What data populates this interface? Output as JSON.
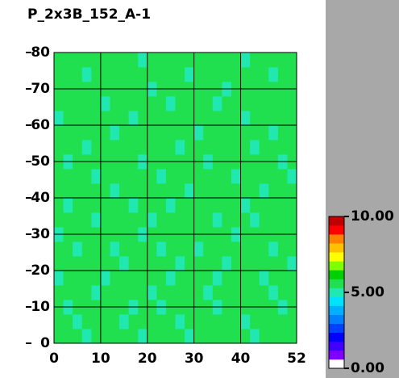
{
  "chart_data": {
    "type": "heatmap",
    "title": "P_2x3B_152_A-1",
    "xlim": [
      0,
      52
    ],
    "ylim": [
      0,
      80
    ],
    "xticks": [
      0,
      10,
      20,
      30,
      40,
      52
    ],
    "yticks": [
      0,
      10,
      20,
      30,
      40,
      50,
      60,
      70,
      80
    ],
    "grid": true,
    "zlim": [
      0,
      10
    ],
    "zticks": [
      {
        "value": 0,
        "label": "0.00"
      },
      {
        "value": 5,
        "label": "5.00"
      },
      {
        "value": 10,
        "label": "10.00"
      }
    ],
    "colorscale": [
      "#ffffff",
      "#8000ff",
      "#4000ff",
      "#0000ff",
      "#0040ff",
      "#0080ff",
      "#00b0ff",
      "#00e0ff",
      "#20e8b0",
      "#20e050",
      "#00d000",
      "#80ff00",
      "#ffff00",
      "#ffc000",
      "#ff8000",
      "#ff0000",
      "#c00000"
    ],
    "z": [
      [
        5.5,
        5.4,
        5.6,
        5.1,
        5.5,
        5.7,
        5.4,
        5.3,
        5.6,
        5.2,
        5.5,
        5.4,
        5.7,
        5.5,
        5.1,
        5.6,
        5.4,
        5.5,
        5.3,
        5.6,
        5.5,
        5.2,
        5.4,
        5.6,
        5.5,
        5.4
      ],
      [
        5.3,
        5.6,
        5.2,
        5.5,
        5.4,
        5.6,
        5.5,
        5.1,
        5.4,
        5.7,
        5.3,
        5.5,
        5.6,
        5.2,
        5.4,
        5.5,
        5.7,
        5.3,
        5.5,
        5.4,
        5.1,
        5.6,
        5.5,
        5.3,
        5.6,
        5.5
      ],
      [
        5.6,
        5.2,
        5.5,
        5.4,
        5.7,
        5.3,
        5.6,
        5.5,
        5.2,
        5.4,
        5.6,
        5.1,
        5.5,
        5.4,
        5.6,
        5.3,
        5.5,
        5.2,
        5.6,
        5.4,
        5.5,
        5.7,
        5.3,
        5.5,
        5.2,
        5.6
      ],
      [
        5.4,
        5.5,
        5.3,
        5.6,
        5.2,
        5.5,
        5.4,
        5.7,
        5.5,
        5.3,
        5.1,
        5.6,
        5.4,
        5.5,
        5.3,
        5.7,
        5.2,
        5.5,
        5.4,
        5.6,
        5.3,
        5.5,
        5.6,
        5.1,
        5.4,
        5.5
      ],
      [
        5.1,
        5.5,
        5.6,
        5.4,
        5.5,
        5.2,
        5.3,
        5.6,
        5.4,
        5.5,
        5.7,
        5.3,
        5.2,
        5.6,
        5.5,
        5.4,
        5.6,
        5.1,
        5.5,
        5.3,
        5.6,
        5.4,
        5.2,
        5.5,
        5.7,
        5.3
      ],
      [
        5.5,
        5.3,
        5.4,
        5.7,
        5.3,
        5.6,
        5.5,
        5.2,
        5.6,
        5.4,
        5.5,
        5.5,
        5.3,
        5.1,
        5.6,
        5.5,
        5.4,
        5.6,
        5.2,
        5.5,
        5.4,
        5.3,
        5.6,
        5.5,
        5.4,
        5.2
      ],
      [
        5.6,
        5.4,
        5.2,
        5.5,
        5.6,
        5.4,
        5.1,
        5.5,
        5.3,
        5.6,
        5.4,
        5.2,
        5.6,
        5.5,
        5.4,
        5.2,
        5.5,
        5.4,
        5.7,
        5.3,
        5.5,
        5.6,
        5.4,
        5.2,
        5.5,
        5.6
      ],
      [
        5.2,
        5.6,
        5.5,
        5.3,
        5.4,
        5.5,
        5.6,
        5.4,
        5.5,
        5.1,
        5.6,
        5.5,
        5.4,
        5.3,
        5.5,
        5.6,
        5.3,
        5.5,
        5.4,
        5.2,
        5.6,
        5.5,
        5.3,
        5.6,
        5.4,
        5.5
      ],
      [
        5.5,
        5.4,
        5.6,
        5.5,
        5.2,
        5.6,
        5.4,
        5.3,
        5.5,
        5.6,
        5.2,
        5.4,
        5.5,
        5.6,
        5.3,
        5.4,
        5.5,
        5.2,
        5.6,
        5.5,
        5.4,
        5.1,
        5.5,
        5.4,
        5.6,
        5.3
      ],
      [
        5.4,
        5.2,
        5.5,
        5.6,
        5.5,
        5.3,
        5.5,
        5.6,
        5.2,
        5.4,
        5.5,
        5.6,
        5.1,
        5.5,
        5.4,
        5.6,
        5.3,
        5.5,
        5.5,
        5.4,
        5.2,
        5.6,
        5.5,
        5.3,
        5.5,
        5.6
      ],
      [
        5.6,
        5.5,
        5.3,
        5.4,
        5.6,
        5.5,
        5.2,
        5.5,
        5.6,
        5.3,
        5.4,
        5.5,
        5.6,
        5.4,
        5.2,
        5.5,
        5.6,
        5.4,
        5.3,
        5.5,
        5.6,
        5.4,
        5.2,
        5.6,
        5.3,
        5.5
      ],
      [
        5.3,
        5.6,
        5.4,
        5.5,
        5.1,
        5.4,
        5.6,
        5.5,
        5.4,
        5.6,
        5.3,
        5.2,
        5.5,
        5.6,
        5.5,
        5.3,
        5.4,
        5.6,
        5.5,
        5.2,
        5.4,
        5.5,
        5.6,
        5.4,
        5.5,
        5.2
      ],
      [
        5.5,
        5.2,
        5.6,
        5.4,
        5.5,
        5.6,
        5.3,
        5.4,
        5.5,
        5.2,
        5.6,
        5.5,
        5.4,
        5.3,
        5.6,
        5.5,
        5.2,
        5.4,
        5.6,
        5.5,
        5.3,
        5.6,
        5.4,
        5.5,
        5.2,
        5.6
      ],
      [
        5.4,
        5.5,
        5.5,
        5.2,
        5.6,
        5.3,
        5.5,
        5.6,
        5.3,
        5.5,
        5.4,
        5.6,
        5.5,
        5.2,
        5.4,
        5.6,
        5.5,
        5.3,
        5.4,
        5.6,
        5.5,
        5.2,
        5.5,
        5.6,
        5.4,
        5.5
      ],
      [
        5.6,
        5.3,
        5.4,
        5.6,
        5.4,
        5.5,
        5.2,
        5.4,
        5.6,
        5.5,
        5.3,
        5.4,
        5.6,
        5.5,
        5.3,
        5.2,
        5.6,
        5.5,
        5.4,
        5.3,
        5.6,
        5.5,
        5.4,
        5.2,
        5.6,
        5.4
      ],
      [
        5.2,
        5.5,
        5.6,
        5.5,
        5.3,
        5.4,
        5.6,
        5.5,
        5.2,
        5.6,
        5.5,
        5.3,
        5.4,
        5.6,
        5.5,
        5.4,
        5.3,
        5.6,
        5.5,
        5.4,
        5.2,
        5.5,
        5.6,
        5.5,
        5.3,
        5.5
      ],
      [
        5.5,
        5.6,
        5.3,
        5.4,
        5.6,
        5.2,
        5.5,
        5.4,
        5.6,
        5.3,
        5.5,
        5.6,
        5.2,
        5.4,
        5.6,
        5.5,
        5.4,
        5.2,
        5.6,
        5.5,
        5.4,
        5.6,
        5.3,
        5.4,
        5.5,
        5.6
      ],
      [
        5.4,
        5.3,
        5.5,
        5.6,
        5.5,
        5.4,
        5.3,
        5.6,
        5.5,
        5.4,
        5.2,
        5.5,
        5.6,
        5.3,
        5.5,
        5.4,
        5.6,
        5.5,
        5.2,
        5.4,
        5.6,
        5.3,
        5.5,
        5.6,
        5.4,
        5.3
      ],
      [
        5.6,
        5.5,
        5.4,
        5.2,
        5.4,
        5.6,
        5.5,
        5.3,
        5.4,
        5.6,
        5.5,
        5.4,
        5.3,
        5.6,
        5.2,
        5.5,
        5.4,
        5.6,
        5.5,
        5.3,
        5.5,
        5.4,
        5.6,
        5.2,
        5.5,
        5.4
      ],
      [
        5.3,
        5.4,
        5.6,
        5.5,
        5.6,
        5.3,
        5.4,
        5.5,
        5.6,
        5.2,
        5.4,
        5.6,
        5.5,
        5.4,
        5.6,
        5.3,
        5.5,
        5.4,
        5.6,
        5.5,
        5.2,
        5.6,
        5.4,
        5.5,
        5.3,
        5.6
      ]
    ]
  }
}
